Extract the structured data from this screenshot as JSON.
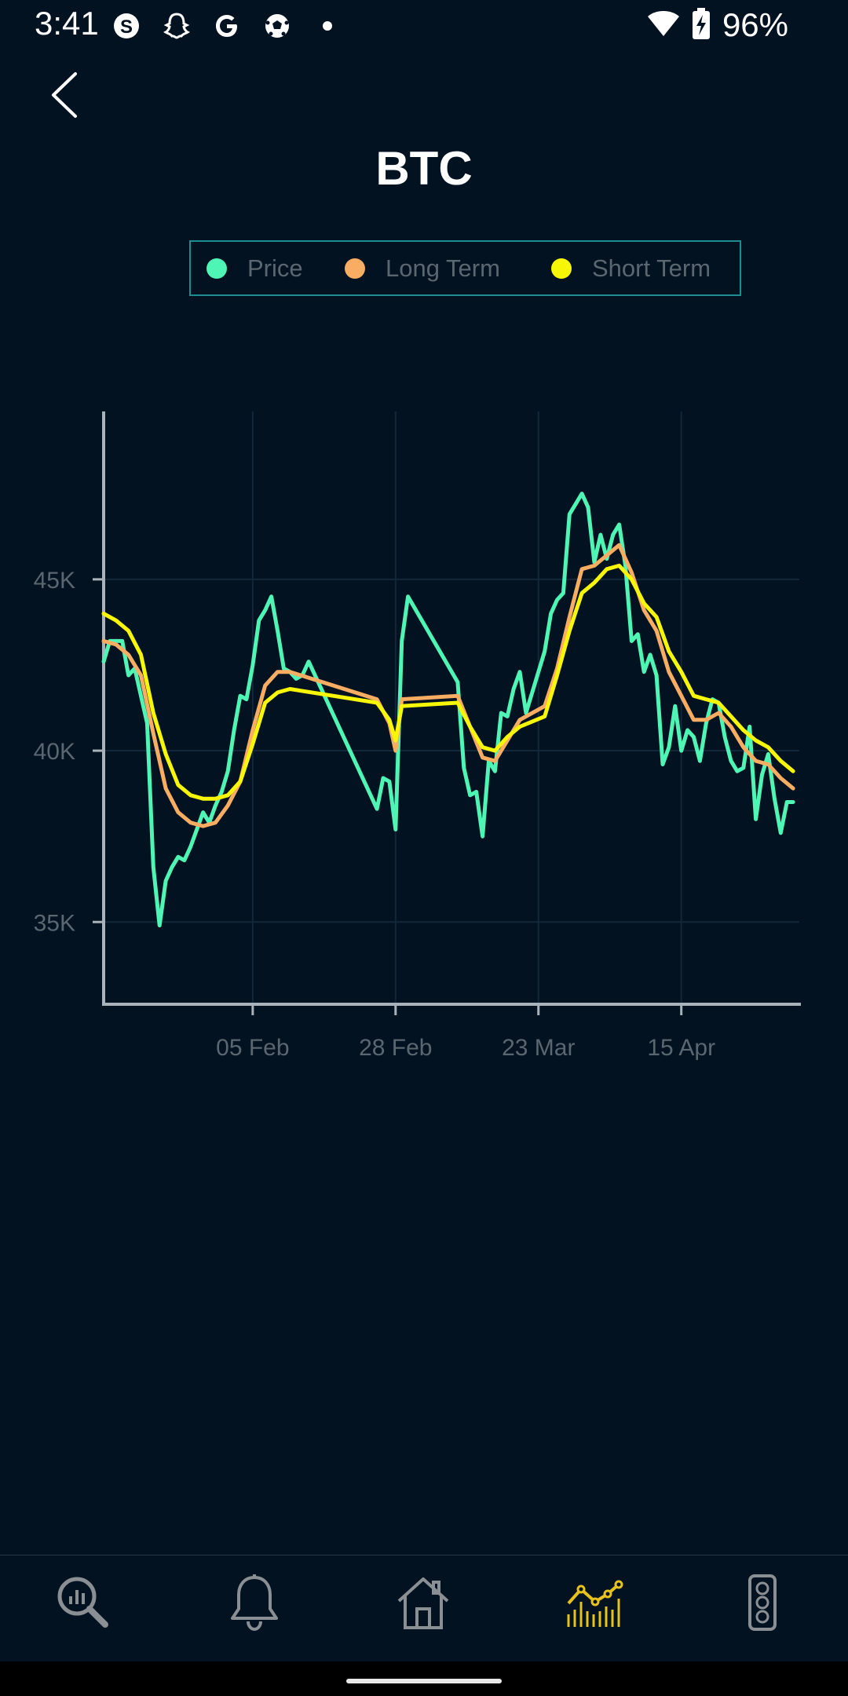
{
  "status_bar": {
    "time": "3:41",
    "battery": "96%",
    "left_icons": [
      "skype-icon",
      "snapchat-icon",
      "google-icon",
      "soccer-ball-icon",
      "dot-icon"
    ],
    "right_icons": [
      "wifi-icon",
      "battery-charging-icon"
    ]
  },
  "header": {
    "title": "BTC"
  },
  "legend": {
    "items": [
      {
        "label": "Price",
        "color": "#4ff5b4"
      },
      {
        "label": "Long Term",
        "color": "#f9ad62"
      },
      {
        "label": "Short Term",
        "color": "#f7f705"
      }
    ]
  },
  "chart_data": {
    "type": "line",
    "title": "",
    "xlabel": "",
    "ylabel": "",
    "x_ticks": [
      "05 Feb",
      "28 Feb",
      "23 Mar",
      "15 Apr"
    ],
    "y_ticks": [
      "35K",
      "40K",
      "45K"
    ],
    "y_tick_values": [
      35000,
      40000,
      45000
    ],
    "ylim": [
      32600,
      49900
    ],
    "xlim": [
      "2022-01-12",
      "2022-05-04"
    ],
    "grid": true,
    "legend_position": "top",
    "series": [
      {
        "name": "Price",
        "color": "#4ff5b4",
        "points": [
          [
            "2022-01-12",
            42600
          ],
          [
            "2022-01-13",
            43200
          ],
          [
            "2022-01-15",
            43200
          ],
          [
            "2022-01-16",
            42200
          ],
          [
            "2022-01-17",
            42400
          ],
          [
            "2022-01-18",
            41600
          ],
          [
            "2022-01-19",
            40800
          ],
          [
            "2022-01-20",
            36600
          ],
          [
            "2022-01-21",
            34900
          ],
          [
            "2022-01-22",
            36200
          ],
          [
            "2022-01-23",
            36600
          ],
          [
            "2022-01-24",
            36900
          ],
          [
            "2022-01-25",
            36800
          ],
          [
            "2022-01-26",
            37200
          ],
          [
            "2022-01-27",
            37700
          ],
          [
            "2022-01-28",
            38200
          ],
          [
            "2022-01-29",
            37900
          ],
          [
            "2022-01-30",
            38400
          ],
          [
            "2022-01-31",
            38800
          ],
          [
            "2022-02-01",
            39400
          ],
          [
            "2022-02-02",
            40600
          ],
          [
            "2022-02-03",
            41600
          ],
          [
            "2022-02-04",
            41500
          ],
          [
            "2022-02-05",
            42500
          ],
          [
            "2022-02-06",
            43800
          ],
          [
            "2022-02-07",
            44100
          ],
          [
            "2022-02-08",
            44500
          ],
          [
            "2022-02-09",
            43500
          ],
          [
            "2022-02-10",
            42400
          ],
          [
            "2022-02-11",
            42300
          ],
          [
            "2022-02-12",
            42100
          ],
          [
            "2022-02-13",
            42200
          ],
          [
            "2022-02-14",
            42600
          ],
          [
            "2022-02-25",
            38300
          ],
          [
            "2022-02-26",
            39200
          ],
          [
            "2022-02-27",
            39100
          ],
          [
            "2022-02-28",
            37700
          ],
          [
            "2022-03-01",
            43200
          ],
          [
            "2022-03-02",
            44500
          ],
          [
            "2022-03-10",
            42000
          ],
          [
            "2022-03-11",
            39500
          ],
          [
            "2022-03-12",
            38700
          ],
          [
            "2022-03-13",
            38800
          ],
          [
            "2022-03-14",
            37500
          ],
          [
            "2022-03-15",
            39700
          ],
          [
            "2022-03-16",
            39400
          ],
          [
            "2022-03-17",
            41100
          ],
          [
            "2022-03-18",
            41000
          ],
          [
            "2022-03-19",
            41800
          ],
          [
            "2022-03-20",
            42300
          ],
          [
            "2022-03-21",
            41100
          ],
          [
            "2022-03-24",
            42900
          ],
          [
            "2022-03-25",
            44000
          ],
          [
            "2022-03-26",
            44400
          ],
          [
            "2022-03-27",
            44600
          ],
          [
            "2022-03-28",
            46900
          ],
          [
            "2022-03-29",
            47200
          ],
          [
            "2022-03-30",
            47500
          ],
          [
            "2022-03-31",
            47100
          ],
          [
            "2022-04-01",
            45500
          ],
          [
            "2022-04-02",
            46300
          ],
          [
            "2022-04-03",
            45600
          ],
          [
            "2022-04-04",
            46300
          ],
          [
            "2022-04-05",
            46600
          ],
          [
            "2022-04-06",
            45400
          ],
          [
            "2022-04-07",
            43200
          ],
          [
            "2022-04-08",
            43400
          ],
          [
            "2022-04-09",
            42300
          ],
          [
            "2022-04-10",
            42800
          ],
          [
            "2022-04-11",
            42200
          ],
          [
            "2022-04-12",
            39600
          ],
          [
            "2022-04-13",
            40100
          ],
          [
            "2022-04-14",
            41300
          ],
          [
            "2022-04-15",
            40000
          ],
          [
            "2022-04-16",
            40600
          ],
          [
            "2022-04-17",
            40400
          ],
          [
            "2022-04-18",
            39700
          ],
          [
            "2022-04-19",
            40800
          ],
          [
            "2022-04-20",
            41500
          ],
          [
            "2022-04-21",
            41400
          ],
          [
            "2022-04-22",
            40400
          ],
          [
            "2022-04-23",
            39700
          ],
          [
            "2022-04-24",
            39400
          ],
          [
            "2022-04-25",
            39500
          ],
          [
            "2022-04-26",
            40700
          ],
          [
            "2022-04-27",
            38000
          ],
          [
            "2022-04-28",
            39300
          ],
          [
            "2022-04-29",
            39900
          ],
          [
            "2022-04-30",
            38600
          ],
          [
            "2022-05-01",
            37600
          ],
          [
            "2022-05-02",
            38500
          ],
          [
            "2022-05-03",
            38500
          ]
        ]
      },
      {
        "name": "Long Term",
        "color": "#f9ad62",
        "points": [
          [
            "2022-01-12",
            43200
          ],
          [
            "2022-01-14",
            43100
          ],
          [
            "2022-01-16",
            42800
          ],
          [
            "2022-01-18",
            42200
          ],
          [
            "2022-01-20",
            40500
          ],
          [
            "2022-01-22",
            38900
          ],
          [
            "2022-01-24",
            38200
          ],
          [
            "2022-01-26",
            37900
          ],
          [
            "2022-01-28",
            37800
          ],
          [
            "2022-01-30",
            37900
          ],
          [
            "2022-02-01",
            38400
          ],
          [
            "2022-02-03",
            39100
          ],
          [
            "2022-02-05",
            40600
          ],
          [
            "2022-02-07",
            41900
          ],
          [
            "2022-02-09",
            42300
          ],
          [
            "2022-02-11",
            42300
          ],
          [
            "2022-02-25",
            41500
          ],
          [
            "2022-02-27",
            40800
          ],
          [
            "2022-02-28",
            40000
          ],
          [
            "2022-03-01",
            41500
          ],
          [
            "2022-03-10",
            41600
          ],
          [
            "2022-03-12",
            40700
          ],
          [
            "2022-03-14",
            39800
          ],
          [
            "2022-03-16",
            39700
          ],
          [
            "2022-03-18",
            40300
          ],
          [
            "2022-03-20",
            40900
          ],
          [
            "2022-03-24",
            41300
          ],
          [
            "2022-03-26",
            42400
          ],
          [
            "2022-03-28",
            43900
          ],
          [
            "2022-03-30",
            45300
          ],
          [
            "2022-04-01",
            45400
          ],
          [
            "2022-04-03",
            45700
          ],
          [
            "2022-04-05",
            46000
          ],
          [
            "2022-04-07",
            45200
          ],
          [
            "2022-04-09",
            44100
          ],
          [
            "2022-04-11",
            43500
          ],
          [
            "2022-04-13",
            42300
          ],
          [
            "2022-04-15",
            41600
          ],
          [
            "2022-04-17",
            40900
          ],
          [
            "2022-04-19",
            40900
          ],
          [
            "2022-04-21",
            41100
          ],
          [
            "2022-04-23",
            40700
          ],
          [
            "2022-04-25",
            40100
          ],
          [
            "2022-04-27",
            39700
          ],
          [
            "2022-04-29",
            39600
          ],
          [
            "2022-05-01",
            39200
          ],
          [
            "2022-05-03",
            38900
          ]
        ]
      },
      {
        "name": "Short Term",
        "color": "#f7f705",
        "points": [
          [
            "2022-01-12",
            44000
          ],
          [
            "2022-01-14",
            43800
          ],
          [
            "2022-01-16",
            43500
          ],
          [
            "2022-01-18",
            42800
          ],
          [
            "2022-01-20",
            41100
          ],
          [
            "2022-01-22",
            39900
          ],
          [
            "2022-01-24",
            39000
          ],
          [
            "2022-01-26",
            38700
          ],
          [
            "2022-01-28",
            38600
          ],
          [
            "2022-01-30",
            38600
          ],
          [
            "2022-02-01",
            38700
          ],
          [
            "2022-02-03",
            39100
          ],
          [
            "2022-02-05",
            40200
          ],
          [
            "2022-02-07",
            41400
          ],
          [
            "2022-02-09",
            41700
          ],
          [
            "2022-02-11",
            41800
          ],
          [
            "2022-02-25",
            41400
          ],
          [
            "2022-02-27",
            40900
          ],
          [
            "2022-02-28",
            40300
          ],
          [
            "2022-03-01",
            41300
          ],
          [
            "2022-03-10",
            41400
          ],
          [
            "2022-03-12",
            40700
          ],
          [
            "2022-03-14",
            40100
          ],
          [
            "2022-03-16",
            40000
          ],
          [
            "2022-03-18",
            40400
          ],
          [
            "2022-03-20",
            40700
          ],
          [
            "2022-03-24",
            41000
          ],
          [
            "2022-03-26",
            42200
          ],
          [
            "2022-03-28",
            43500
          ],
          [
            "2022-03-30",
            44600
          ],
          [
            "2022-04-01",
            44900
          ],
          [
            "2022-04-03",
            45300
          ],
          [
            "2022-04-05",
            45400
          ],
          [
            "2022-04-07",
            45000
          ],
          [
            "2022-04-09",
            44300
          ],
          [
            "2022-04-11",
            43900
          ],
          [
            "2022-04-13",
            42900
          ],
          [
            "2022-04-15",
            42300
          ],
          [
            "2022-04-17",
            41600
          ],
          [
            "2022-04-19",
            41500
          ],
          [
            "2022-04-21",
            41400
          ],
          [
            "2022-04-23",
            41000
          ],
          [
            "2022-04-25",
            40600
          ],
          [
            "2022-04-27",
            40300
          ],
          [
            "2022-04-29",
            40100
          ],
          [
            "2022-05-01",
            39700
          ],
          [
            "2022-05-03",
            39400
          ]
        ]
      }
    ]
  },
  "bottom_nav": {
    "items": [
      {
        "icon": "analytics-search-icon",
        "active": false
      },
      {
        "icon": "bell-icon",
        "active": false
      },
      {
        "icon": "home-icon",
        "active": false
      },
      {
        "icon": "chart-icon",
        "active": true
      },
      {
        "icon": "traffic-light-icon",
        "active": false
      }
    ],
    "active_color": "#e7c21d",
    "inactive_color": "#8a8f94"
  }
}
